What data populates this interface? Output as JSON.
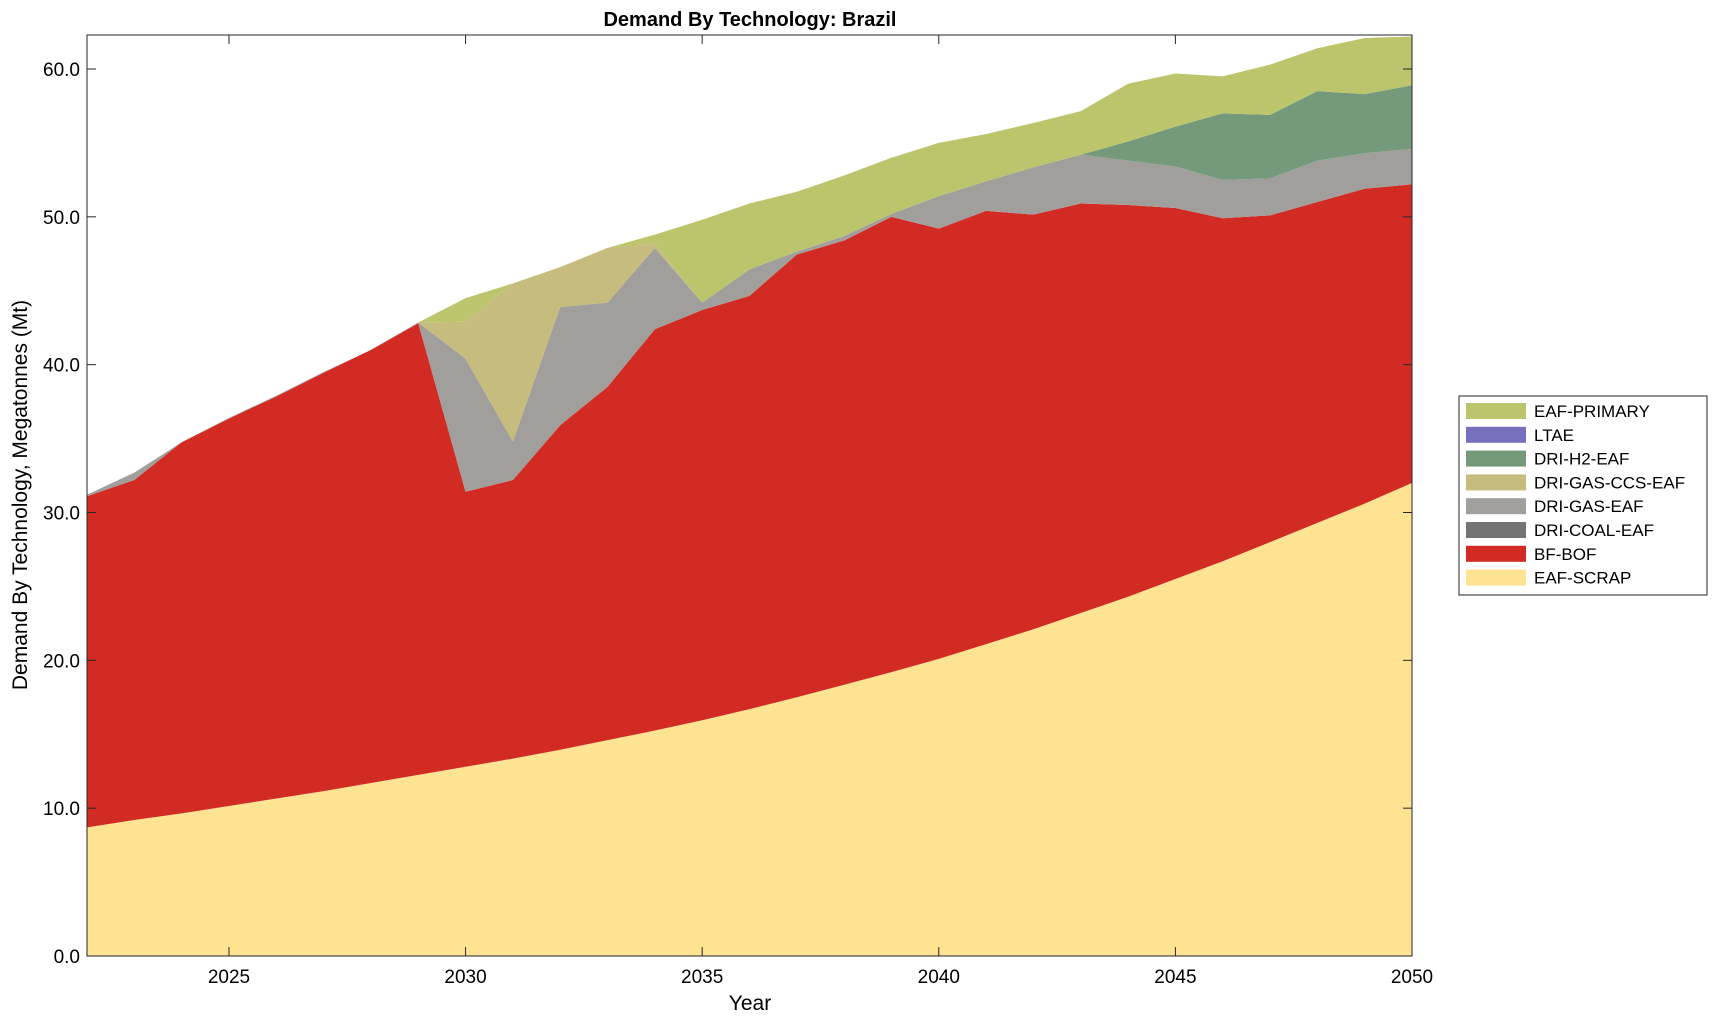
{
  "chart_data": {
    "type": "area",
    "stacked": true,
    "title": "Demand By Technology: Brazil",
    "xlabel": "Year",
    "ylabel": "Demand By Technology, Megatonnes (Mt)",
    "xlim": [
      2022,
      2050
    ],
    "ylim": [
      0,
      62.3
    ],
    "xticks": [
      2025,
      2030,
      2035,
      2040,
      2045,
      2050
    ],
    "yticks": [
      0,
      10,
      20,
      30,
      40,
      50,
      60
    ],
    "ytick_labels": [
      "0.0",
      "10.0",
      "20.0",
      "30.0",
      "40.0",
      "50.0",
      "60.0"
    ],
    "legend_location": "right",
    "x": [
      2022,
      2023,
      2024,
      2025,
      2026,
      2027,
      2028,
      2029,
      2030,
      2031,
      2032,
      2033,
      2034,
      2035,
      2036,
      2037,
      2038,
      2039,
      2040,
      2041,
      2042,
      2043,
      2044,
      2045,
      2046,
      2047,
      2048,
      2049,
      2050
    ],
    "series": [
      {
        "name": "EAF-SCRAP",
        "color": "#fde392",
        "values": [
          8.7,
          9.2,
          9.65,
          10.15,
          10.65,
          11.15,
          11.7,
          12.25,
          12.8,
          13.35,
          13.95,
          14.6,
          15.25,
          15.95,
          16.7,
          17.5,
          18.35,
          19.2,
          20.1,
          21.1,
          22.1,
          23.2,
          24.3,
          25.5,
          26.7,
          28.0,
          29.3,
          30.6,
          32.0
        ]
      },
      {
        "name": "BF-BOF",
        "color": "#d22b24",
        "values": [
          22.4,
          23.0,
          25.1,
          26.2,
          27.2,
          28.3,
          29.3,
          30.55,
          18.6,
          18.85,
          21.95,
          23.9,
          27.15,
          27.75,
          27.95,
          29.95,
          30.05,
          30.8,
          29.1,
          29.3,
          28.05,
          27.7,
          26.5,
          25.1,
          23.2,
          22.1,
          21.7,
          21.3,
          20.2
        ]
      },
      {
        "name": "DRI-COAL-EAF",
        "color": "#747474",
        "values": [
          0,
          0,
          0,
          0,
          0,
          0,
          0,
          0,
          0,
          0,
          0,
          0,
          0,
          0,
          0,
          0,
          0,
          0,
          0,
          0,
          0,
          0,
          0,
          0,
          0,
          0,
          0,
          0,
          0
        ]
      },
      {
        "name": "DRI-GAS-EAF",
        "color": "#a09f9c",
        "values": [
          0.1,
          0.5,
          0.0,
          0.05,
          0.05,
          0.05,
          0.0,
          0.05,
          9.0,
          2.6,
          8.0,
          5.7,
          5.5,
          0.5,
          1.8,
          0.2,
          0.3,
          0.2,
          2.2,
          2.0,
          3.2,
          3.3,
          3.0,
          2.8,
          2.6,
          2.5,
          2.8,
          2.4,
          2.4
        ]
      },
      {
        "name": "DRI-GAS-CCS-EAF",
        "color": "#c6bc7d",
        "values": [
          0,
          0,
          0,
          0,
          0,
          0,
          0,
          0,
          2.5,
          10.7,
          2.7,
          3.7,
          0.3,
          0,
          0,
          0,
          0,
          0,
          0,
          0,
          0,
          0,
          0,
          0,
          0,
          0,
          0,
          0,
          0
        ]
      },
      {
        "name": "DRI-H2-EAF",
        "color": "#759a7b",
        "values": [
          0,
          0,
          0,
          0,
          0,
          0,
          0,
          0,
          0,
          0,
          0,
          0,
          0,
          0,
          0,
          0,
          0,
          0,
          0,
          0,
          0,
          0,
          1.3,
          2.7,
          4.5,
          4.3,
          4.7,
          4.0,
          4.3
        ]
      },
      {
        "name": "LTAE",
        "color": "#7670bf",
        "values": [
          0,
          0,
          0,
          0,
          0,
          0,
          0,
          0,
          0,
          0,
          0,
          0,
          0,
          0,
          0,
          0,
          0,
          0,
          0,
          0,
          0,
          0,
          0,
          0,
          0,
          0,
          0,
          0,
          0
        ]
      },
      {
        "name": "EAF-PRIMARY",
        "color": "#bcc56b",
        "values": [
          0,
          0,
          0,
          0,
          0,
          0,
          0,
          0,
          1.6,
          0,
          0,
          0,
          0.6,
          5.6,
          4.45,
          4.05,
          4.1,
          3.8,
          3.6,
          3.2,
          3.0,
          2.95,
          3.9,
          3.6,
          2.5,
          3.4,
          2.9,
          3.8,
          3.3
        ]
      }
    ]
  }
}
